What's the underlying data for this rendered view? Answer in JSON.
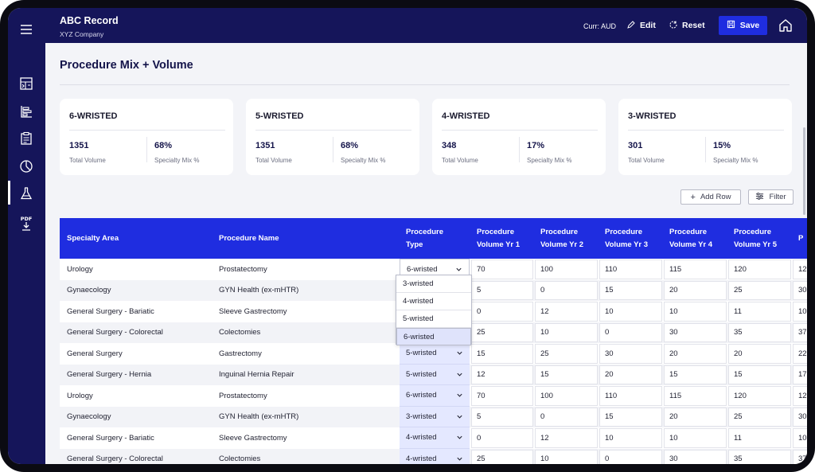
{
  "header": {
    "app_title": "ABC Record",
    "company": "XYZ Company",
    "currency": "Curr: AUD",
    "edit_label": "Edit",
    "reset_label": "Reset",
    "save_label": "Save"
  },
  "sidebar": {
    "items": [
      {
        "icon": "dashboard-icon"
      },
      {
        "icon": "bar-chart-icon"
      },
      {
        "icon": "clipboard-icon"
      },
      {
        "icon": "pie-chart-icon"
      },
      {
        "icon": "flask-icon",
        "active": true
      },
      {
        "icon": "pdf-download-icon",
        "label": "PDF"
      }
    ]
  },
  "page": {
    "title": "Procedure Mix + Volume"
  },
  "cards": [
    {
      "title": "6-WRISTED",
      "total": "1351",
      "total_label": "Total Volume",
      "mix": "68%",
      "mix_label": "Specialty Mix %"
    },
    {
      "title": "5-WRISTED",
      "total": "1351",
      "total_label": "Total Volume",
      "mix": "68%",
      "mix_label": "Specialty Mix %"
    },
    {
      "title": "4-WRISTED",
      "total": "348",
      "total_label": "Total Volume",
      "mix": "17%",
      "mix_label": "Specialty Mix %"
    },
    {
      "title": "3-WRISTED",
      "total": "301",
      "total_label": "Total Volume",
      "mix": "15%",
      "mix_label": "Specialty Mix %"
    }
  ],
  "toolbar": {
    "add_row": "Add Row",
    "filter": "Filter"
  },
  "table": {
    "headers": [
      "Specialty Area",
      "Procedure Name",
      "Procedure\nType",
      "Procedure\nVolume Yr 1",
      "Procedure\nVolume Yr 2",
      "Procedure\nVolume Yr 3",
      "Procedure\nVolume Yr 4",
      "Procedure\nVolume Yr 5",
      "P"
    ],
    "rows": [
      {
        "area": "Urology",
        "name": "Prostatectomy",
        "type": "6-wristed",
        "v": [
          "70",
          "100",
          "110",
          "115",
          "120",
          "12"
        ]
      },
      {
        "area": "Gynaecology",
        "name": "GYN Health (ex-mHTR)",
        "type": "",
        "v": [
          "5",
          "0",
          "15",
          "20",
          "25",
          "30"
        ]
      },
      {
        "area": "General Surgery - Bariatic",
        "name": "Sleeve Gastrectomy",
        "type": "",
        "v": [
          "0",
          "12",
          "10",
          "10",
          "11",
          "10"
        ]
      },
      {
        "area": "General Surgery - Colorectal",
        "name": "Colectomies",
        "type": "",
        "v": [
          "25",
          "10",
          "0",
          "30",
          "35",
          "37"
        ]
      },
      {
        "area": "General Surgery",
        "name": "Gastrectomy",
        "type": "5-wristed",
        "v": [
          "15",
          "25",
          "30",
          "20",
          "20",
          "22"
        ]
      },
      {
        "area": "General Surgery - Hernia",
        "name": "Inguinal Hernia Repair",
        "type": "5-wristed",
        "v": [
          "12",
          "15",
          "20",
          "15",
          "15",
          "17"
        ]
      },
      {
        "area": "Urology",
        "name": "Prostatectomy",
        "type": "6-wristed",
        "v": [
          "70",
          "100",
          "110",
          "115",
          "120",
          "12"
        ]
      },
      {
        "area": "Gynaecology",
        "name": "GYN Health (ex-mHTR)",
        "type": "3-wristed",
        "v": [
          "5",
          "0",
          "15",
          "20",
          "25",
          "30"
        ]
      },
      {
        "area": "General Surgery - Bariatic",
        "name": "Sleeve Gastrectomy",
        "type": "4-wristed",
        "v": [
          "0",
          "12",
          "10",
          "10",
          "11",
          "10"
        ]
      },
      {
        "area": "General Surgery - Colorectal",
        "name": "Colectomies",
        "type": "4-wristed",
        "v": [
          "25",
          "10",
          "0",
          "30",
          "35",
          "37"
        ]
      }
    ],
    "dropdown_options": [
      "3-wristed",
      "4-wristed",
      "5-wristed",
      "6-wristed"
    ],
    "dropdown_selected": "6-wristed"
  },
  "colors": {
    "nav_bg": "#15155a",
    "accent": "#1f2de0",
    "type_cell_bg": "#e4e8ff"
  }
}
